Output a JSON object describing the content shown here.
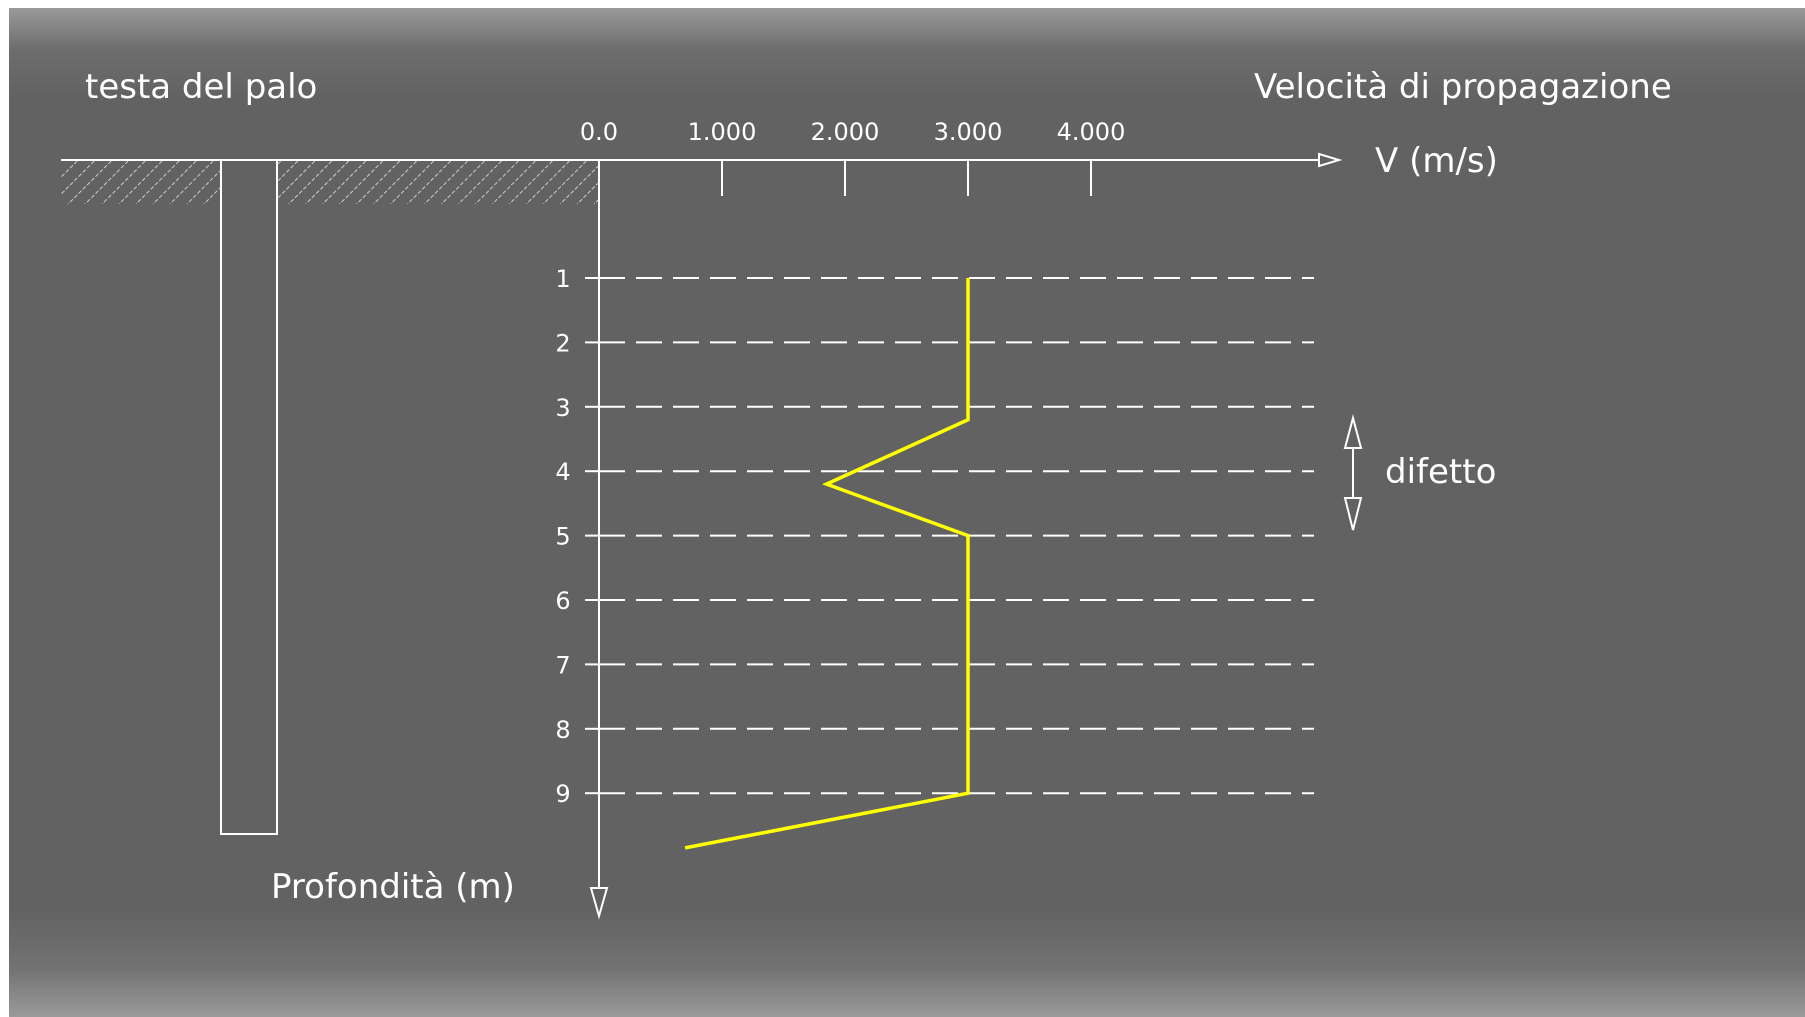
{
  "labels": {
    "pile_head": "testa del palo",
    "velocity_title": "Velocità di propagazione",
    "velocity_axis": "V (m/s)",
    "depth_axis": "Profondità (m)",
    "defect": "difetto"
  },
  "chart_data": {
    "type": "line",
    "x_ticks": [
      "0.0",
      "1.000",
      "2.000",
      "3.000",
      "4.000"
    ],
    "x_tick_values": [
      0,
      1000,
      2000,
      3000,
      4000
    ],
    "y_ticks": [
      "1",
      "2",
      "3",
      "4",
      "5",
      "6",
      "7",
      "8",
      "9"
    ],
    "y_tick_values": [
      1,
      2,
      3,
      4,
      5,
      6,
      7,
      8,
      9
    ],
    "series": [
      {
        "color": "#ffff00",
        "points": [
          {
            "v": 3000,
            "depth": 1.0
          },
          {
            "v": 3000,
            "depth": 3.2
          },
          {
            "v": 1850,
            "depth": 4.2
          },
          {
            "v": 3000,
            "depth": 5.0
          },
          {
            "v": 3000,
            "depth": 9.0
          },
          {
            "v": 700,
            "depth": 9.85
          }
        ]
      }
    ],
    "grid": "dashed horizontal lines at each depth tick",
    "annotation": "double arrow marking defect between depths 3 and 5"
  },
  "colors": {
    "background": "#626262",
    "lines": "#ffffff",
    "velocity_curve": "#ffff00"
  }
}
